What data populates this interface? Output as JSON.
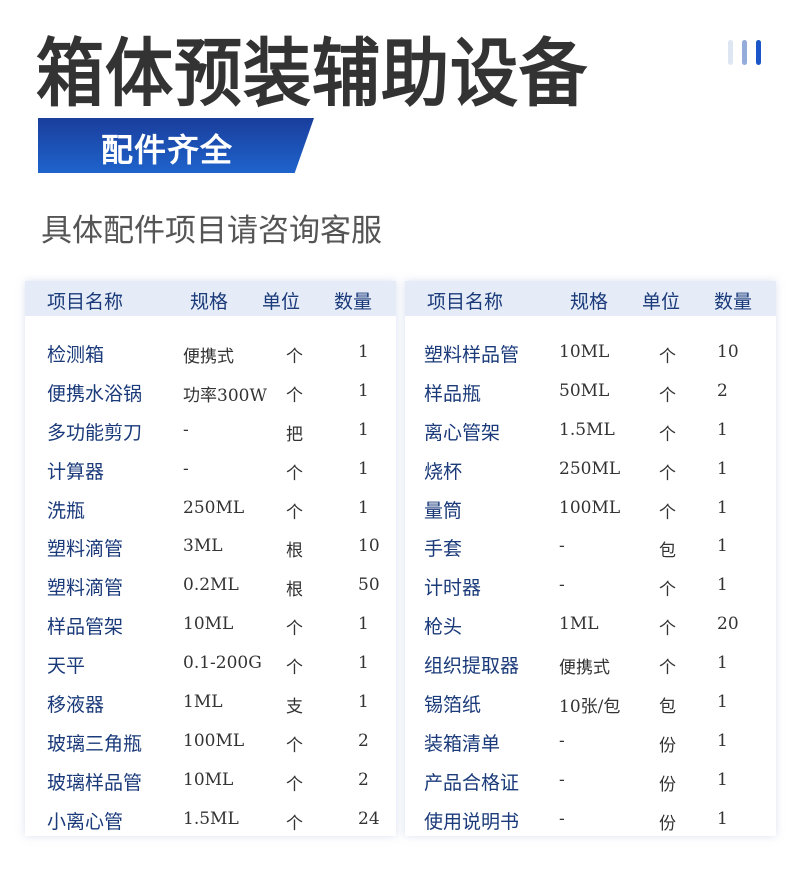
{
  "title": "箱体预装辅助设备",
  "badge": "配件齐全",
  "subtitle": "具体配件项目请咨询客服",
  "decor_colors": [
    "#dfe6f3",
    "#93acd9",
    "#1a56c8"
  ],
  "headers": {
    "name": "项目名称",
    "spec": "规格",
    "unit": "单位",
    "qty": "数量"
  },
  "left_rows": [
    {
      "name": "检测箱",
      "spec": "便携式",
      "unit": "个",
      "qty": "1"
    },
    {
      "name": "便携水浴锅",
      "spec": "功率300W",
      "unit": "个",
      "qty": "1"
    },
    {
      "name": "多功能剪刀",
      "spec": "-",
      "unit": "把",
      "qty": "1"
    },
    {
      "name": "计算器",
      "spec": "-",
      "unit": "个",
      "qty": "1"
    },
    {
      "name": "洗瓶",
      "spec": "250ML",
      "unit": "个",
      "qty": "1"
    },
    {
      "name": "塑料滴管",
      "spec": "3ML",
      "unit": "根",
      "qty": "10"
    },
    {
      "name": "塑料滴管",
      "spec": "0.2ML",
      "unit": "根",
      "qty": "50"
    },
    {
      "name": "样品管架",
      "spec": "10ML",
      "unit": "个",
      "qty": "1"
    },
    {
      "name": "天平",
      "spec": "0.1-200G",
      "unit": "个",
      "qty": "1"
    },
    {
      "name": "移液器",
      "spec": "1ML",
      "unit": "支",
      "qty": "1"
    },
    {
      "name": "玻璃三角瓶",
      "spec": "100ML",
      "unit": "个",
      "qty": "2"
    },
    {
      "name": "玻璃样品管",
      "spec": "10ML",
      "unit": "个",
      "qty": "2"
    },
    {
      "name": "小离心管",
      "spec": "1.5ML",
      "unit": "个",
      "qty": "24"
    }
  ],
  "right_rows": [
    {
      "name": "塑料样品管",
      "spec": "10ML",
      "unit": "个",
      "qty": "10"
    },
    {
      "name": "样品瓶",
      "spec": "50ML",
      "unit": "个",
      "qty": "2"
    },
    {
      "name": "离心管架",
      "spec": "1.5ML",
      "unit": "个",
      "qty": "1"
    },
    {
      "name": "烧杯",
      "spec": "250ML",
      "unit": "个",
      "qty": "1"
    },
    {
      "name": "量筒",
      "spec": "100ML",
      "unit": "个",
      "qty": "1"
    },
    {
      "name": "手套",
      "spec": "-",
      "unit": "包",
      "qty": "1"
    },
    {
      "name": "计时器",
      "spec": "-",
      "unit": "个",
      "qty": "1"
    },
    {
      "name": "枪头",
      "spec": "1ML",
      "unit": "个",
      "qty": "20"
    },
    {
      "name": "组织提取器",
      "spec": "便携式",
      "unit": "个",
      "qty": "1"
    },
    {
      "name": "锡箔纸",
      "spec": "10张/包",
      "unit": "包",
      "qty": "1"
    },
    {
      "name": "装箱清单",
      "spec": "-",
      "unit": "份",
      "qty": "1"
    },
    {
      "name": "产品合格证",
      "spec": "-",
      "unit": "份",
      "qty": "1"
    },
    {
      "name": "使用说明书",
      "spec": "-",
      "unit": "份",
      "qty": "1"
    }
  ]
}
